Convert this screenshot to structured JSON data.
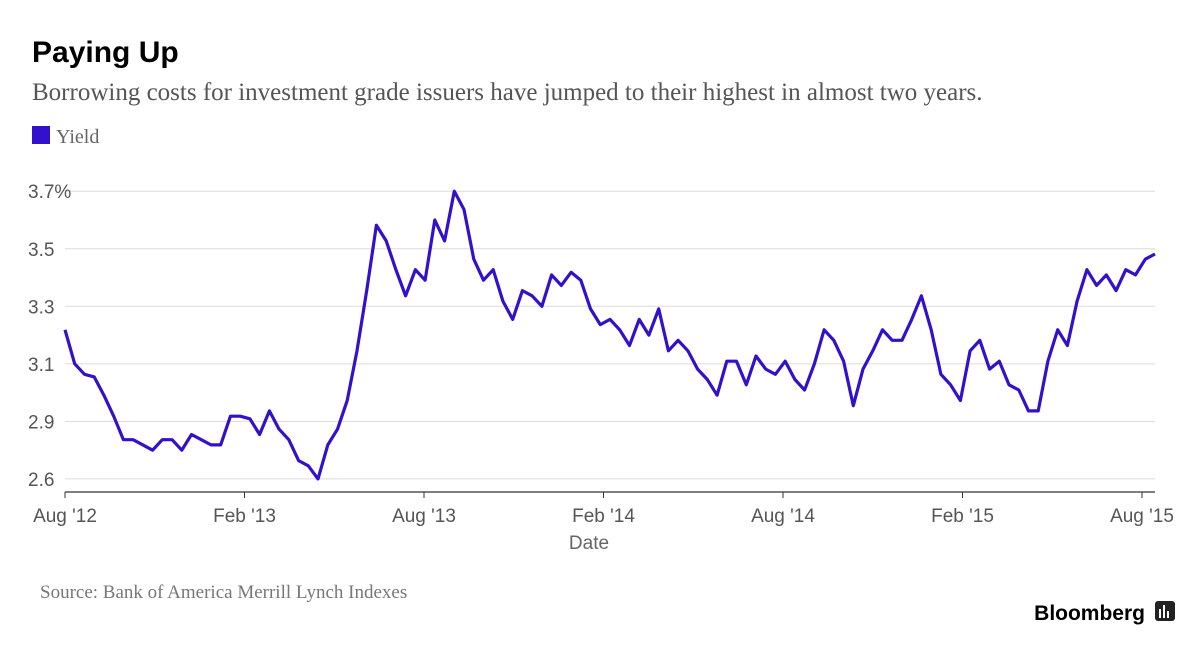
{
  "chart_data": {
    "type": "line",
    "title": "Paying Up",
    "subtitle": "Borrowing costs for investment grade issuers have jumped to their highest in almost two years.",
    "x_label": "Date",
    "source": "Source: Bank of America Merrill Lynch Indexes",
    "brand": "Bloomberg",
    "legend": "top-left",
    "grid": true,
    "xlim": [
      "2012-08",
      "2015-08"
    ],
    "xticks": [
      {
        "value": "2012-08",
        "label": "Aug '12"
      },
      {
        "value": "2013-02",
        "label": "Feb '13"
      },
      {
        "value": "2013-08",
        "label": "Aug '13"
      },
      {
        "value": "2014-02",
        "label": "Feb '14"
      },
      {
        "value": "2014-08",
        "label": "Aug '14"
      },
      {
        "value": "2015-02",
        "label": "Feb '15"
      },
      {
        "value": "2015-08",
        "label": "Aug '15"
      }
    ],
    "ylim": [
      2.59,
      3.76
    ],
    "yticks": [
      {
        "value": 2.64,
        "label": "2.6"
      },
      {
        "value": 2.86,
        "label": "2.9"
      },
      {
        "value": 3.08,
        "label": "3.1"
      },
      {
        "value": 3.3,
        "label": "3.3"
      },
      {
        "value": 3.52,
        "label": "3.5"
      },
      {
        "value": 3.74,
        "label": "3.7%"
      }
    ],
    "series": [
      {
        "name": "Yield",
        "color": "#3311cc",
        "values": [
          3.21,
          3.08,
          3.04,
          3.03,
          2.96,
          2.88,
          2.79,
          2.79,
          2.77,
          2.75,
          2.79,
          2.79,
          2.75,
          2.81,
          2.79,
          2.77,
          2.77,
          2.88,
          2.88,
          2.87,
          2.81,
          2.9,
          2.83,
          2.79,
          2.71,
          2.69,
          2.64,
          2.77,
          2.83,
          2.94,
          3.13,
          3.36,
          3.61,
          3.55,
          3.44,
          3.34,
          3.44,
          3.4,
          3.63,
          3.55,
          3.74,
          3.67,
          3.48,
          3.4,
          3.44,
          3.32,
          3.25,
          3.36,
          3.34,
          3.3,
          3.42,
          3.38,
          3.43,
          3.4,
          3.29,
          3.23,
          3.25,
          3.21,
          3.15,
          3.25,
          3.19,
          3.29,
          3.13,
          3.17,
          3.13,
          3.06,
          3.02,
          2.96,
          3.09,
          3.09,
          3.0,
          3.11,
          3.06,
          3.04,
          3.09,
          3.02,
          2.98,
          3.08,
          3.21,
          3.17,
          3.09,
          2.92,
          3.06,
          3.13,
          3.21,
          3.17,
          3.17,
          3.25,
          3.34,
          3.21,
          3.04,
          3.0,
          2.94,
          3.13,
          3.17,
          3.06,
          3.09,
          3.0,
          2.98,
          2.9,
          2.9,
          3.09,
          3.21,
          3.15,
          3.32,
          3.44,
          3.38,
          3.42,
          3.36,
          3.44,
          3.42,
          3.48,
          3.5
        ]
      }
    ]
  }
}
